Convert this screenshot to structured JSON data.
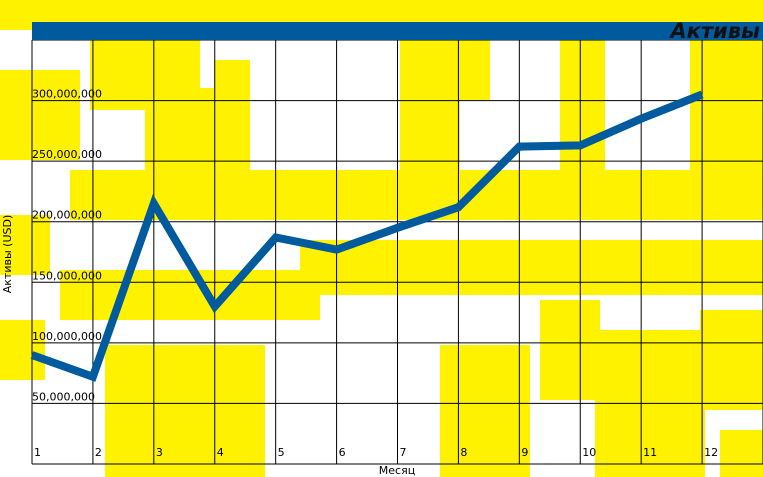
{
  "chart_data": {
    "type": "line",
    "title": "Активы",
    "xlabel": "Месяц",
    "ylabel": "Активы (USD)",
    "x": [
      1,
      2,
      3,
      4,
      5,
      6,
      7,
      8,
      9,
      10,
      11,
      12
    ],
    "x_tick_labels": [
      "1",
      "2",
      "3",
      "4",
      "5",
      "6",
      "7",
      "8",
      "9",
      "10",
      "11",
      "12"
    ],
    "y_tick_values": [
      50000000,
      100000000,
      150000000,
      200000000,
      250000000,
      300000000
    ],
    "y_tick_labels": [
      "50,000,000",
      "100,000,000",
      "150,000,000",
      "200,000,000",
      "250,000,000",
      "300,000,000"
    ],
    "ylim": [
      0,
      350000000
    ],
    "xlim": [
      1,
      13
    ],
    "grid": true,
    "series": [
      {
        "values": [
          90000000,
          72000000,
          215000000,
          130000000,
          187000000,
          177000000,
          195000000,
          212000000,
          262000000,
          263000000,
          285000000,
          305000000
        ]
      }
    ]
  },
  "colors": {
    "line": "#005b9e",
    "title_bar": "#005b9e",
    "background_brush": "#fff200",
    "grid": "#000000"
  }
}
